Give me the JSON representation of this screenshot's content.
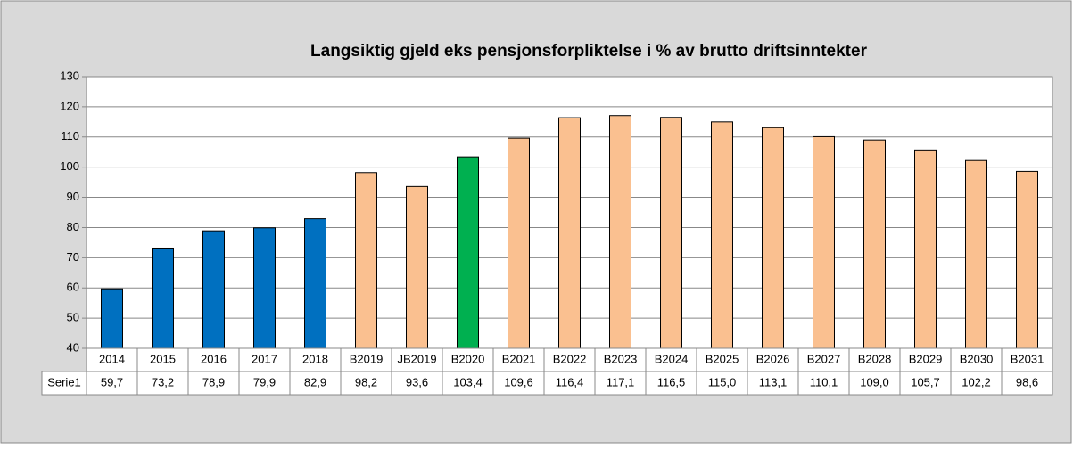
{
  "chart_data": {
    "type": "bar",
    "title": "Langsiktig gjeld eks pensjonsforpliktelse i % av brutto driftsinntekter",
    "categories": [
      "2014",
      "2015",
      "2016",
      "2017",
      "2018",
      "B2019",
      "JB2019",
      "B2020",
      "B2021",
      "B2022",
      "B2023",
      "B2024",
      "B2025",
      "B2026",
      "B2027",
      "B2028",
      "B2029",
      "B2030",
      "B2031"
    ],
    "series": [
      {
        "name": "Serie1",
        "values": [
          59.7,
          73.2,
          78.9,
          79.9,
          82.9,
          98.2,
          93.6,
          103.4,
          109.6,
          116.4,
          117.1,
          116.5,
          115.0,
          113.1,
          110.1,
          109.0,
          105.7,
          102.2,
          98.6
        ],
        "value_labels": [
          "59,7",
          "73,2",
          "78,9",
          "79,9",
          "82,9",
          "98,2",
          "93,6",
          "103,4",
          "109,6",
          "116,4",
          "117,1",
          "116,5",
          "115,0",
          "113,1",
          "110,1",
          "109,0",
          "105,7",
          "102,2",
          "98,6"
        ],
        "colors": [
          "#0070c0",
          "#0070c0",
          "#0070c0",
          "#0070c0",
          "#0070c0",
          "#fac090",
          "#fac090",
          "#00b050",
          "#fac090",
          "#fac090",
          "#fac090",
          "#fac090",
          "#fac090",
          "#fac090",
          "#fac090",
          "#fac090",
          "#fac090",
          "#fac090",
          "#fac090"
        ]
      }
    ],
    "ylim": [
      40,
      130
    ],
    "yticks": [
      40,
      50,
      60,
      70,
      80,
      90,
      100,
      110,
      120,
      130
    ],
    "grid": true
  }
}
